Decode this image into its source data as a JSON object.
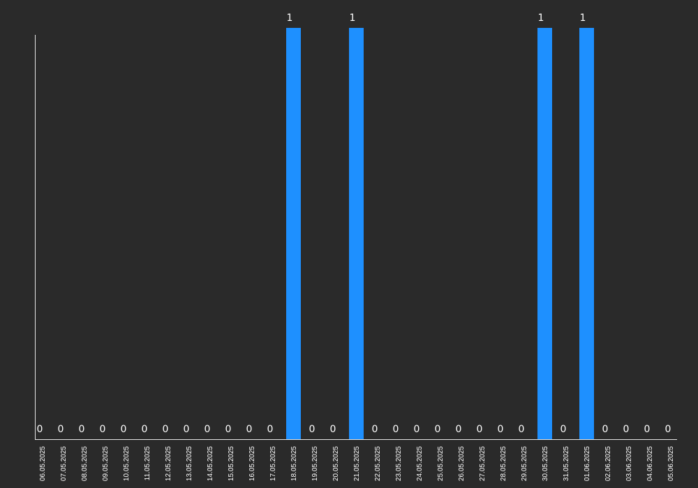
{
  "chart_data": {
    "type": "bar",
    "title": "",
    "xlabel": "",
    "ylabel": "",
    "ylim": [
      0,
      1
    ],
    "grid": false,
    "legend": "none",
    "categories": [
      "06.05.2025",
      "07.05.2025",
      "08.05.2025",
      "09.05.2025",
      "10.05.2025",
      "11.05.2025",
      "12.05.2025",
      "13.05.2025",
      "14.05.2025",
      "15.05.2025",
      "16.05.2025",
      "17.05.2025",
      "18.05.2025",
      "19.05.2025",
      "20.05.2025",
      "21.05.2025",
      "22.05.2025",
      "23.05.2025",
      "24.05.2025",
      "25.05.2025",
      "26.05.2025",
      "27.05.2025",
      "28.05.2025",
      "29.05.2025",
      "30.05.2025",
      "31.05.2025",
      "01.06.2025",
      "02.06.2025",
      "03.06.2025",
      "04.06.2025",
      "05.06.2025"
    ],
    "values": [
      0,
      0,
      0,
      0,
      0,
      0,
      0,
      0,
      0,
      0,
      0,
      0,
      1,
      0,
      0,
      1,
      0,
      0,
      0,
      0,
      0,
      0,
      0,
      0,
      1,
      0,
      1,
      0,
      0,
      0,
      0
    ],
    "colors": {
      "bar": "#1e90ff",
      "background": "#2a2a2a",
      "axis": "#e6e6e6",
      "text": "#ffffff"
    }
  }
}
